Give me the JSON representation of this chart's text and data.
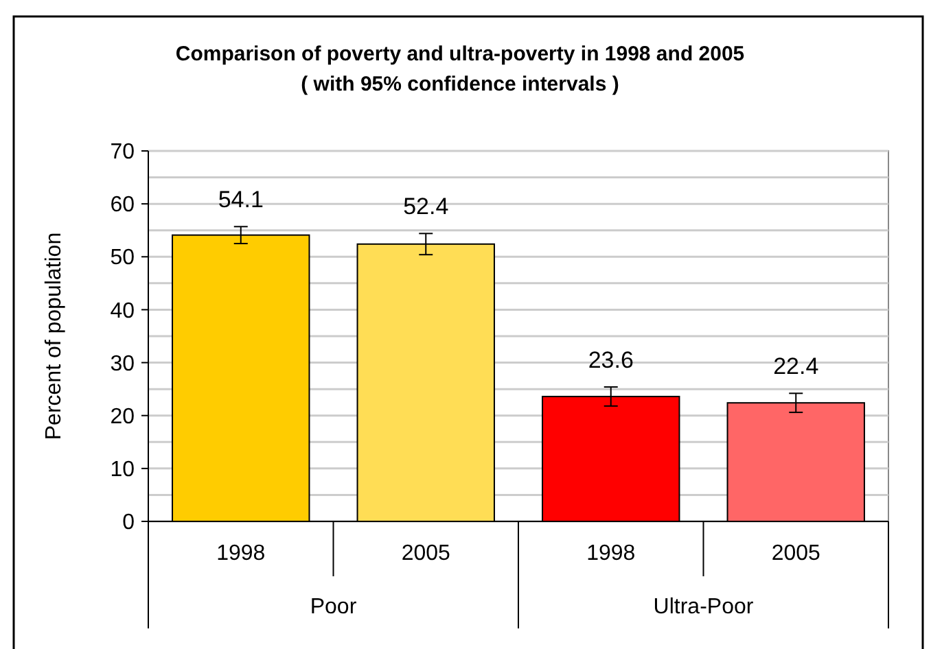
{
  "chart_data": {
    "type": "bar",
    "title": "Comparison of poverty and ultra-poverty in 1998 and 2005",
    "subtitle": "( with 95% confidence intervals )",
    "ylabel": "Percent of population",
    "categories": [
      "1998",
      "2005",
      "1998",
      "2005"
    ],
    "values": [
      54.1,
      52.4,
      23.6,
      22.4
    ],
    "colors": [
      "#ffcc00",
      "#ffdd55",
      "#ff0000",
      "#ff6666"
    ],
    "errors": [
      1.6,
      2,
      1.8,
      1.8
    ],
    "data_labels": true,
    "ylim": [
      0,
      70
    ],
    "yticks": [
      0,
      {
        "value": 5,
        "label": null
      },
      10,
      {
        "value": 15,
        "label": null
      },
      20,
      {
        "value": 25,
        "label": null
      },
      30,
      {
        "value": 35,
        "label": null
      },
      40,
      {
        "value": 45,
        "label": null
      },
      50,
      {
        "value": 55,
        "label": null
      },
      60,
      {
        "value": 65,
        "label": null
      },
      70
    ],
    "grid": "y",
    "annotations": [
      "Poor",
      "Ultra-Poor"
    ]
  }
}
